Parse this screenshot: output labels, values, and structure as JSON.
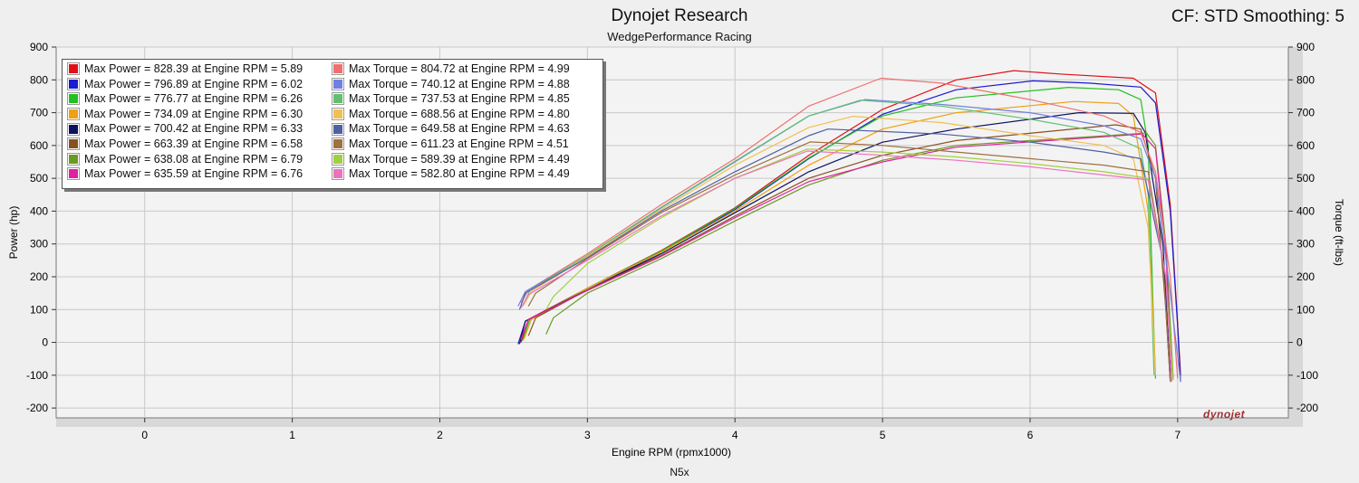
{
  "header": {
    "title": "Dynojet Research",
    "subtitle": "WedgePerformance Racing",
    "cf_label": "CF: STD Smoothing: 5"
  },
  "footer": {
    "label": "N5x"
  },
  "logo": {
    "text": "dynojet"
  },
  "chart_data": {
    "type": "line",
    "title": "Dynojet Research",
    "subtitle": "WedgePerformance Racing",
    "xlabel": "Engine RPM (rpmx1000)",
    "ylabel_left": "Power (hp)",
    "ylabel_right": "Torque (ft-lbs)",
    "xlim": [
      -0.6,
      7.75
    ],
    "ylim": [
      -230,
      900
    ],
    "x_ticks": [
      0,
      1,
      2,
      3,
      4,
      5,
      6,
      7
    ],
    "y_ticks": [
      -200,
      -100,
      0,
      100,
      200,
      300,
      400,
      500,
      600,
      700,
      800,
      900
    ],
    "grid": true,
    "legend_position": "top-left",
    "legend_power": [
      {
        "text": "Max Power = 828.39 at Engine RPM = 5.89",
        "color": "#e0101a"
      },
      {
        "text": "Max Power = 796.89 at Engine RPM = 6.02",
        "color": "#1a1ad0"
      },
      {
        "text": "Max Power = 776.77 at Engine RPM = 6.26",
        "color": "#22c022"
      },
      {
        "text": "Max Power = 734.09 at Engine RPM = 6.30",
        "color": "#f0a010"
      },
      {
        "text": "Max Power = 700.42 at Engine RPM = 6.33",
        "color": "#101060"
      },
      {
        "text": "Max Power = 663.39 at Engine RPM = 6.58",
        "color": "#8a5020"
      },
      {
        "text": "Max Power = 638.08 at Engine RPM = 6.79",
        "color": "#6a9a20"
      },
      {
        "text": "Max Power = 635.59 at Engine RPM = 6.76",
        "color": "#e020a0"
      }
    ],
    "legend_torque": [
      {
        "text": "Max Torque = 804.72 at Engine RPM = 4.99",
        "color": "#f07070"
      },
      {
        "text": "Max Torque = 740.12 at Engine RPM = 4.88",
        "color": "#7080e0"
      },
      {
        "text": "Max Torque = 737.53 at Engine RPM = 4.85",
        "color": "#60c070"
      },
      {
        "text": "Max Torque = 688.56 at Engine RPM = 4.80",
        "color": "#f0c050"
      },
      {
        "text": "Max Torque = 649.58 at Engine RPM = 4.63",
        "color": "#5060a0"
      },
      {
        "text": "Max Torque = 611.23 at Engine RPM = 4.51",
        "color": "#a07040"
      },
      {
        "text": "Max Torque = 589.39 at Engine RPM = 4.49",
        "color": "#a0d040"
      },
      {
        "text": "Max Torque = 582.80 at Engine RPM = 4.49",
        "color": "#f070c0"
      }
    ],
    "series": [
      {
        "kind": "power",
        "color": "#e0101a",
        "points": [
          [
            2.55,
            0
          ],
          [
            2.6,
            70
          ],
          [
            3,
            165
          ],
          [
            3.5,
            280
          ],
          [
            4,
            410
          ],
          [
            4.5,
            570
          ],
          [
            5,
            710
          ],
          [
            5.5,
            800
          ],
          [
            5.89,
            828
          ],
          [
            6.2,
            818
          ],
          [
            6.7,
            805
          ],
          [
            6.85,
            760
          ],
          [
            6.95,
            420
          ],
          [
            7.0,
            60
          ],
          [
            7.02,
            -100
          ]
        ]
      },
      {
        "kind": "power",
        "color": "#1a1ad0",
        "points": [
          [
            2.53,
            -5
          ],
          [
            2.58,
            65
          ],
          [
            3,
            160
          ],
          [
            3.5,
            275
          ],
          [
            4,
            405
          ],
          [
            4.5,
            560
          ],
          [
            5,
            695
          ],
          [
            5.5,
            770
          ],
          [
            6.02,
            797
          ],
          [
            6.4,
            790
          ],
          [
            6.75,
            778
          ],
          [
            6.85,
            730
          ],
          [
            6.95,
            400
          ],
          [
            7.0,
            50
          ],
          [
            7.02,
            -120
          ]
        ]
      },
      {
        "kind": "power",
        "color": "#22c022",
        "points": [
          [
            2.56,
            5
          ],
          [
            2.61,
            70
          ],
          [
            3,
            165
          ],
          [
            3.5,
            278
          ],
          [
            4,
            408
          ],
          [
            4.5,
            562
          ],
          [
            5,
            690
          ],
          [
            5.5,
            745
          ],
          [
            6.26,
            777
          ],
          [
            6.6,
            770
          ],
          [
            6.75,
            740
          ],
          [
            6.8,
            600
          ],
          [
            6.83,
            150
          ],
          [
            6.85,
            -110
          ]
        ]
      },
      {
        "kind": "power",
        "color": "#f0a010",
        "points": [
          [
            2.57,
            10
          ],
          [
            2.62,
            70
          ],
          [
            3,
            165
          ],
          [
            3.5,
            275
          ],
          [
            4,
            400
          ],
          [
            4.5,
            540
          ],
          [
            5,
            650
          ],
          [
            5.5,
            700
          ],
          [
            6.3,
            734
          ],
          [
            6.6,
            728
          ],
          [
            6.7,
            690
          ],
          [
            6.8,
            400
          ],
          [
            6.85,
            -90
          ]
        ]
      },
      {
        "kind": "power",
        "color": "#101060",
        "points": [
          [
            2.54,
            -5
          ],
          [
            2.58,
            65
          ],
          [
            3,
            160
          ],
          [
            3.5,
            270
          ],
          [
            4,
            395
          ],
          [
            4.5,
            520
          ],
          [
            5,
            610
          ],
          [
            5.5,
            650
          ],
          [
            6.33,
            700
          ],
          [
            6.7,
            698
          ],
          [
            6.78,
            640
          ],
          [
            6.9,
            300
          ],
          [
            6.95,
            -100
          ]
        ]
      },
      {
        "kind": "power",
        "color": "#8a5020",
        "points": [
          [
            2.6,
            20
          ],
          [
            2.65,
            75
          ],
          [
            3,
            160
          ],
          [
            3.5,
            265
          ],
          [
            4,
            385
          ],
          [
            4.5,
            500
          ],
          [
            5,
            570
          ],
          [
            5.5,
            615
          ],
          [
            6.58,
            663
          ],
          [
            6.75,
            650
          ],
          [
            6.85,
            500
          ],
          [
            6.92,
            100
          ],
          [
            6.95,
            -120
          ]
        ]
      },
      {
        "kind": "power",
        "color": "#6a9a20",
        "points": [
          [
            2.72,
            25
          ],
          [
            2.77,
            75
          ],
          [
            3,
            150
          ],
          [
            3.5,
            255
          ],
          [
            4,
            370
          ],
          [
            4.5,
            480
          ],
          [
            5,
            555
          ],
          [
            5.5,
            600
          ],
          [
            6.79,
            638
          ],
          [
            6.85,
            600
          ],
          [
            6.92,
            300
          ],
          [
            6.97,
            -110
          ]
        ]
      },
      {
        "kind": "power",
        "color": "#e020a0",
        "points": [
          [
            2.55,
            10
          ],
          [
            2.6,
            70
          ],
          [
            3,
            158
          ],
          [
            3.5,
            262
          ],
          [
            4,
            380
          ],
          [
            4.5,
            490
          ],
          [
            5,
            550
          ],
          [
            5.5,
            595
          ],
          [
            6.76,
            635
          ],
          [
            6.85,
            590
          ],
          [
            6.92,
            280
          ],
          [
            6.96,
            -115
          ]
        ]
      },
      {
        "kind": "torque",
        "color": "#f07070",
        "points": [
          [
            2.55,
            120
          ],
          [
            2.6,
            160
          ],
          [
            3,
            270
          ],
          [
            3.5,
            420
          ],
          [
            4,
            560
          ],
          [
            4.5,
            720
          ],
          [
            4.99,
            805
          ],
          [
            5.4,
            790
          ],
          [
            6,
            740
          ],
          [
            6.5,
            690
          ],
          [
            6.75,
            640
          ],
          [
            6.85,
            520
          ],
          [
            6.95,
            200
          ],
          [
            7.0,
            -110
          ]
        ]
      },
      {
        "kind": "torque",
        "color": "#7080e0",
        "points": [
          [
            2.53,
            110
          ],
          [
            2.58,
            155
          ],
          [
            3,
            262
          ],
          [
            3.5,
            410
          ],
          [
            4,
            550
          ],
          [
            4.5,
            690
          ],
          [
            4.88,
            740
          ],
          [
            5.4,
            725
          ],
          [
            6,
            700
          ],
          [
            6.5,
            660
          ],
          [
            6.75,
            620
          ],
          [
            6.85,
            500
          ],
          [
            6.95,
            150
          ],
          [
            7.02,
            -120
          ]
        ]
      },
      {
        "kind": "torque",
        "color": "#60c070",
        "points": [
          [
            2.56,
            110
          ],
          [
            2.61,
            158
          ],
          [
            3,
            265
          ],
          [
            3.5,
            412
          ],
          [
            4,
            552
          ],
          [
            4.5,
            690
          ],
          [
            4.85,
            738
          ],
          [
            5.4,
            720
          ],
          [
            6,
            680
          ],
          [
            6.5,
            640
          ],
          [
            6.75,
            590
          ],
          [
            6.8,
            450
          ],
          [
            6.84,
            -100
          ]
        ]
      },
      {
        "kind": "torque",
        "color": "#f0c050",
        "points": [
          [
            2.57,
            115
          ],
          [
            2.62,
            155
          ],
          [
            3,
            262
          ],
          [
            3.5,
            405
          ],
          [
            4,
            540
          ],
          [
            4.5,
            655
          ],
          [
            4.8,
            689
          ],
          [
            5.4,
            670
          ],
          [
            6,
            630
          ],
          [
            6.5,
            600
          ],
          [
            6.7,
            560
          ],
          [
            6.8,
            350
          ],
          [
            6.85,
            -100
          ]
        ]
      },
      {
        "kind": "torque",
        "color": "#5060a0",
        "points": [
          [
            2.54,
            100
          ],
          [
            2.58,
            150
          ],
          [
            3,
            258
          ],
          [
            3.5,
            400
          ],
          [
            4,
            520
          ],
          [
            4.5,
            630
          ],
          [
            4.63,
            650
          ],
          [
            5.4,
            635
          ],
          [
            6,
            610
          ],
          [
            6.5,
            580
          ],
          [
            6.75,
            560
          ],
          [
            6.9,
            250
          ],
          [
            6.95,
            -110
          ]
        ]
      },
      {
        "kind": "torque",
        "color": "#a07040",
        "points": [
          [
            2.6,
            110
          ],
          [
            2.65,
            150
          ],
          [
            3,
            255
          ],
          [
            3.5,
            395
          ],
          [
            4,
            510
          ],
          [
            4.51,
            611
          ],
          [
            5,
            600
          ],
          [
            5.5,
            580
          ],
          [
            6,
            560
          ],
          [
            6.5,
            540
          ],
          [
            6.8,
            520
          ],
          [
            6.9,
            250
          ],
          [
            6.95,
            -120
          ]
        ]
      },
      {
        "kind": "torque",
        "color": "#a0d040",
        "points": [
          [
            2.72,
            100
          ],
          [
            2.77,
            140
          ],
          [
            3,
            240
          ],
          [
            3.5,
            380
          ],
          [
            4,
            500
          ],
          [
            4.49,
            589
          ],
          [
            5,
            580
          ],
          [
            5.5,
            565
          ],
          [
            6,
            545
          ],
          [
            6.5,
            520
          ],
          [
            6.8,
            500
          ],
          [
            6.92,
            200
          ],
          [
            6.97,
            -115
          ]
        ]
      },
      {
        "kind": "torque",
        "color": "#f070c0",
        "points": [
          [
            2.55,
            105
          ],
          [
            2.6,
            145
          ],
          [
            3,
            250
          ],
          [
            3.5,
            385
          ],
          [
            4,
            500
          ],
          [
            4.49,
            583
          ],
          [
            5,
            570
          ],
          [
            5.5,
            555
          ],
          [
            6,
            535
          ],
          [
            6.5,
            510
          ],
          [
            6.8,
            495
          ],
          [
            6.92,
            200
          ],
          [
            6.96,
            -120
          ]
        ]
      }
    ]
  }
}
